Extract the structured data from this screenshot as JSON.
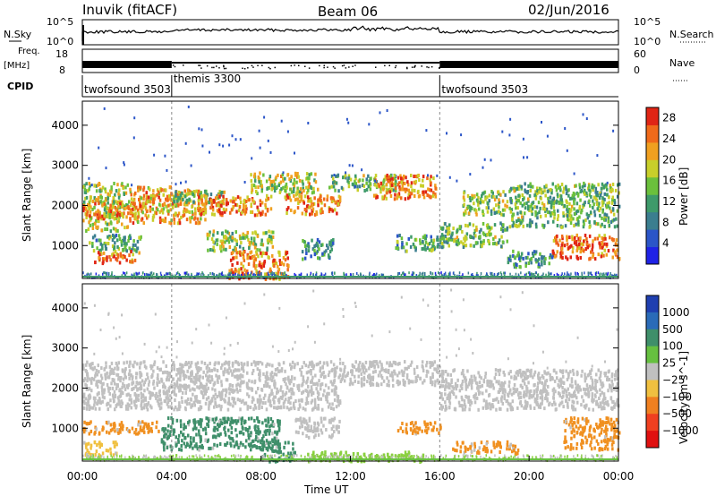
{
  "header": {
    "station": "Inuvik (fitACF)",
    "beam": "Beam 06",
    "date": "02/Jun/2016"
  },
  "top_panels": {
    "nsky_label": "N.Sky",
    "nsky_ticks": [
      "10^5",
      "10^0"
    ],
    "nsearch_label": "N.Search",
    "nsearch_ticks": [
      "10^5",
      "10^0"
    ],
    "freq_label_line1": "Freq.",
    "freq_label_line2": "[MHz]",
    "freq_ticks": [
      "18",
      "8"
    ],
    "nave_label": "Nave",
    "nave_ticks": [
      "60",
      "0"
    ],
    "cpid_label": "CPID",
    "cpid_segments": [
      {
        "label": "twofsound 3503",
        "start_hour": 0,
        "end_hour": 4
      },
      {
        "label": "themis 3300",
        "start_hour": 4,
        "end_hour": 16
      },
      {
        "label": "twofsound 3503",
        "start_hour": 16,
        "end_hour": 24
      }
    ]
  },
  "chart_data": [
    {
      "type": "heatmap",
      "title": "",
      "xlabel": "Time UT",
      "ylabel": "Slant Range [km]",
      "xlim": [
        0,
        24
      ],
      "ylim": [
        180,
        4600
      ],
      "x_ticks": [
        "00:00",
        "04:00",
        "08:00",
        "12:00",
        "16:00",
        "20:00",
        "00:00"
      ],
      "y_ticks": [
        1000,
        2000,
        3000,
        4000
      ],
      "colorbar": {
        "label": "Power [dB]",
        "ticks": [
          4,
          8,
          12,
          16,
          20,
          24,
          28
        ],
        "range": [
          0,
          30
        ],
        "colors": [
          "#1f22e6",
          "#2b55c8",
          "#3b7e8f",
          "#3e9a6a",
          "#6bc03c",
          "#c8cf2a",
          "#f0a020",
          "#f06a1a",
          "#e02515"
        ]
      },
      "regions": [
        {
          "t0": 0.0,
          "t1": 2.0,
          "r0": 1400,
          "r1": 2600,
          "level": 18
        },
        {
          "t0": 0.0,
          "t1": 3.0,
          "r0": 1700,
          "r1": 2100,
          "level": 24
        },
        {
          "t0": 0.2,
          "t1": 2.6,
          "r0": 900,
          "r1": 1300,
          "level": 12
        },
        {
          "t0": 0.5,
          "t1": 2.5,
          "r0": 600,
          "r1": 900,
          "level": 26
        },
        {
          "t0": 2.0,
          "t1": 5.5,
          "r0": 1600,
          "r1": 2500,
          "level": 22
        },
        {
          "t0": 4.0,
          "t1": 6.5,
          "r0": 2100,
          "r1": 2400,
          "level": 14
        },
        {
          "t0": 5.0,
          "t1": 8.5,
          "r0": 1800,
          "r1": 2300,
          "level": 24
        },
        {
          "t0": 5.5,
          "t1": 8.5,
          "r0": 900,
          "r1": 1400,
          "level": 16
        },
        {
          "t0": 6.5,
          "t1": 9.2,
          "r0": 200,
          "r1": 900,
          "level": 26
        },
        {
          "t0": 7.5,
          "t1": 10.5,
          "r0": 2300,
          "r1": 2850,
          "level": 18
        },
        {
          "t0": 9.0,
          "t1": 11.5,
          "r0": 1800,
          "r1": 2300,
          "level": 24
        },
        {
          "t0": 9.8,
          "t1": 11.2,
          "r0": 700,
          "r1": 1200,
          "level": 10
        },
        {
          "t0": 11.0,
          "t1": 14.0,
          "r0": 2400,
          "r1": 2800,
          "level": 14
        },
        {
          "t0": 13.0,
          "t1": 15.8,
          "r0": 2200,
          "r1": 2800,
          "level": 24
        },
        {
          "t0": 14.0,
          "t1": 16.0,
          "r0": 900,
          "r1": 1300,
          "level": 12
        },
        {
          "t0": 16.0,
          "t1": 19.0,
          "r0": 1000,
          "r1": 1600,
          "level": 14
        },
        {
          "t0": 17.0,
          "t1": 19.0,
          "r0": 1800,
          "r1": 2400,
          "level": 16
        },
        {
          "t0": 19.0,
          "t1": 24.0,
          "r0": 1500,
          "r1": 2600,
          "level": 14
        },
        {
          "t0": 21.0,
          "t1": 24.0,
          "r0": 700,
          "r1": 1300,
          "level": 26
        },
        {
          "t0": 19.0,
          "t1": 21.0,
          "r0": 500,
          "r1": 900,
          "level": 10
        }
      ]
    },
    {
      "type": "heatmap",
      "title": "",
      "xlabel": "Time UT",
      "ylabel": "Slant Range [km]",
      "xlim": [
        0,
        24
      ],
      "ylim": [
        180,
        4600
      ],
      "x_ticks": [
        "00:00",
        "04:00",
        "08:00",
        "12:00",
        "16:00",
        "20:00",
        "00:00"
      ],
      "y_ticks": [
        1000,
        2000,
        3000,
        4000
      ],
      "colorbar": {
        "label": "Velocity [m s^-1]",
        "ticks": [
          "1000",
          "500",
          "100",
          "25",
          "−25",
          "−100",
          "−500",
          "−1000"
        ],
        "colors": [
          "#1f3fb0",
          "#2a6bb8",
          "#3f8f6a",
          "#66c040",
          "#c0c0c0",
          "#f0c040",
          "#f08020",
          "#f04020",
          "#e01010"
        ]
      },
      "regions": [
        {
          "t0": 0.0,
          "t1": 11.5,
          "r0": 1500,
          "r1": 2700,
          "class": "gray"
        },
        {
          "t0": 11.5,
          "t1": 16.0,
          "r0": 2100,
          "r1": 2700,
          "class": "gray"
        },
        {
          "t0": 16.0,
          "t1": 24.0,
          "r0": 1500,
          "r1": 2500,
          "class": "gray"
        },
        {
          "t0": 0.0,
          "t1": 3.5,
          "r0": 900,
          "r1": 1200,
          "class": "orange"
        },
        {
          "t0": 0.0,
          "t1": 1.5,
          "r0": 350,
          "r1": 700,
          "class": "yellow"
        },
        {
          "t0": 3.5,
          "t1": 8.8,
          "r0": 500,
          "r1": 1300,
          "class": "teal"
        },
        {
          "t0": 8.0,
          "t1": 9.5,
          "r0": 200,
          "r1": 700,
          "class": "teal"
        },
        {
          "t0": 9.5,
          "t1": 11.5,
          "r0": 800,
          "r1": 1300,
          "class": "gray"
        },
        {
          "t0": 10.0,
          "t1": 15.5,
          "r0": 200,
          "r1": 450,
          "class": "lightgreen"
        },
        {
          "t0": 14.0,
          "t1": 16.0,
          "r0": 900,
          "r1": 1200,
          "class": "orange"
        },
        {
          "t0": 16.5,
          "t1": 19.5,
          "r0": 400,
          "r1": 700,
          "class": "orange"
        },
        {
          "t0": 21.5,
          "t1": 24.0,
          "r0": 500,
          "r1": 1300,
          "class": "orange"
        }
      ]
    }
  ]
}
